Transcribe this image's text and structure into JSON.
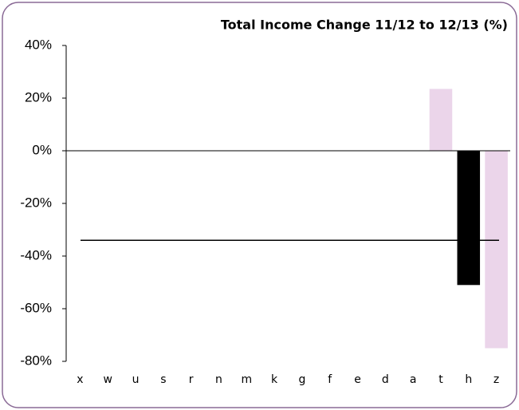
{
  "chart_data": {
    "type": "bar",
    "title": "Total Income Change 11/12 to 12/13 (%)",
    "categories": [
      "x",
      "w",
      "u",
      "s",
      "r",
      "n",
      "m",
      "k",
      "g",
      "f",
      "e",
      "d",
      "a",
      "t",
      "h",
      "z"
    ],
    "values": [
      null,
      null,
      null,
      null,
      null,
      null,
      null,
      null,
      null,
      null,
      null,
      null,
      null,
      23.5,
      -51,
      -75
    ],
    "colors": [
      null,
      null,
      null,
      null,
      null,
      null,
      null,
      null,
      null,
      null,
      null,
      null,
      null,
      "#ebd5ea",
      "#000000",
      "#ebd5ea"
    ],
    "reference_value": -34,
    "ylim": [
      -80,
      40
    ],
    "yticks": [
      {
        "value": -80,
        "label": "-80%"
      },
      {
        "value": -60,
        "label": "-60%"
      },
      {
        "value": -40,
        "label": "-40%"
      },
      {
        "value": -20,
        "label": "-20%"
      },
      {
        "value": 0,
        "label": "0%"
      },
      {
        "value": 20,
        "label": "20%"
      },
      {
        "value": 40,
        "label": "40%"
      }
    ]
  }
}
